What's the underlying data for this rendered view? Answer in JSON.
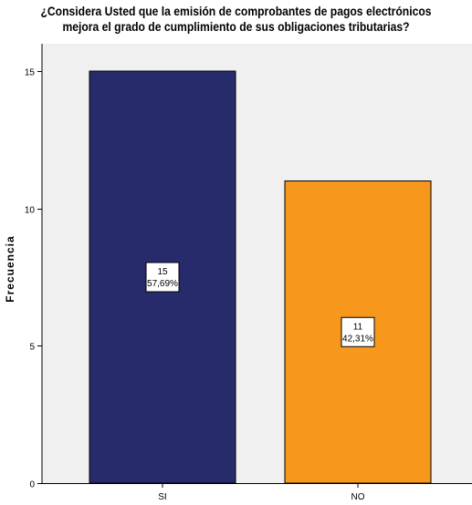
{
  "chart_data": {
    "type": "bar",
    "title_lines": [
      "¿Considera Usted que la emisión de comprobantes de pagos electrónicos",
      "mejora el grado de cumplimiento de sus obligaciones tributarias?"
    ],
    "xlabel": "",
    "ylabel": "Frecuencia",
    "categories": [
      "SI",
      "NO"
    ],
    "values": [
      15,
      11
    ],
    "percent_labels": [
      "57,69%",
      "42,31%"
    ],
    "value_labels": [
      "15",
      "11"
    ],
    "ylim": [
      0,
      15
    ],
    "yticks": [
      0,
      5,
      10,
      15
    ],
    "grid": false,
    "colors": [
      "#272a6b",
      "#f7981d"
    ],
    "plot_background": "#f0f0f0"
  }
}
